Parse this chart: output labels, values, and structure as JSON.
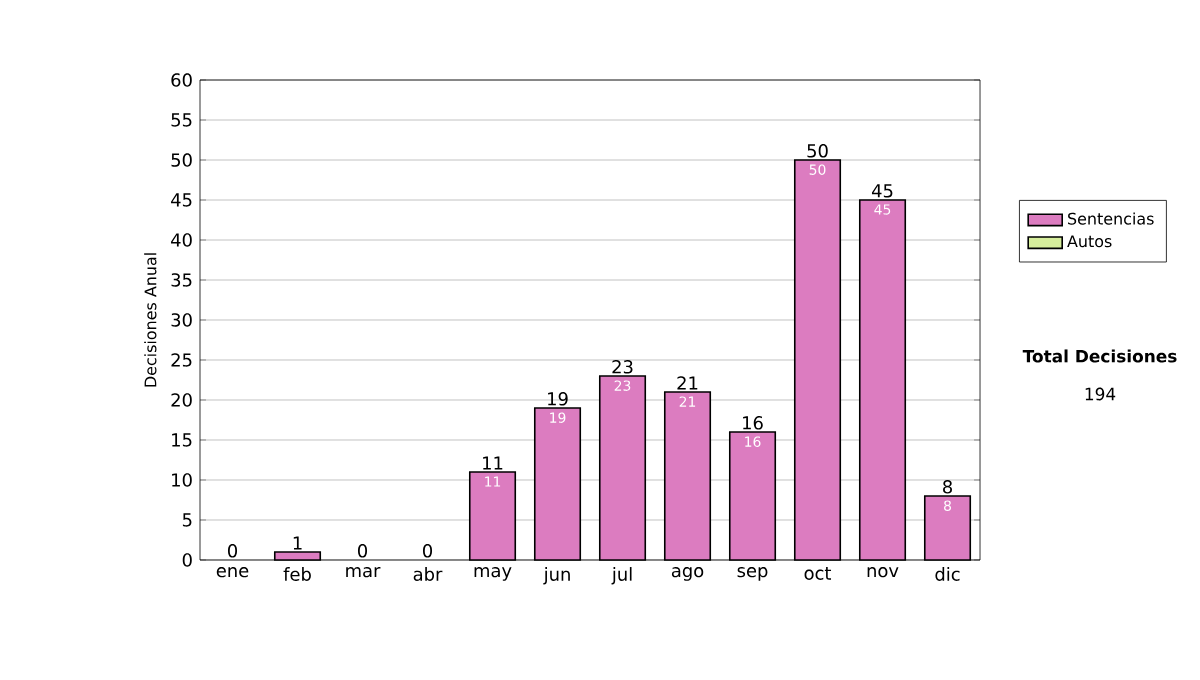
{
  "chart_data": {
    "type": "bar",
    "stacked": true,
    "categories": [
      "ene",
      "feb",
      "mar",
      "abr",
      "may",
      "jun",
      "jul",
      "ago",
      "sep",
      "oct",
      "nov",
      "dic"
    ],
    "series": [
      {
        "name": "Sentencias",
        "color": "#dc7cc0",
        "values": [
          0,
          1,
          0,
          0,
          11,
          19,
          23,
          21,
          16,
          50,
          45,
          8
        ],
        "value_labels": [
          null,
          null,
          null,
          null,
          "11",
          "19",
          "23",
          "21",
          "16",
          "50",
          "45",
          "8"
        ]
      },
      {
        "name": "Autos",
        "color": "#d6ee9c",
        "values": [
          0,
          0,
          0,
          0,
          0,
          0,
          0,
          0,
          0,
          0,
          0,
          0
        ]
      }
    ],
    "totals": [
      "0",
      "1",
      "0",
      "0",
      "11",
      "19",
      "23",
      "21",
      "16",
      "50",
      "45",
      "8"
    ],
    "ylabel": "Decisiones Anual",
    "ylim": [
      0,
      60
    ],
    "yticks": [
      0,
      5,
      10,
      15,
      20,
      25,
      30,
      35,
      40,
      45,
      50,
      55,
      60
    ],
    "grid": "y",
    "legend": "right",
    "annotations": [
      "Total Decisiones",
      "194"
    ]
  }
}
